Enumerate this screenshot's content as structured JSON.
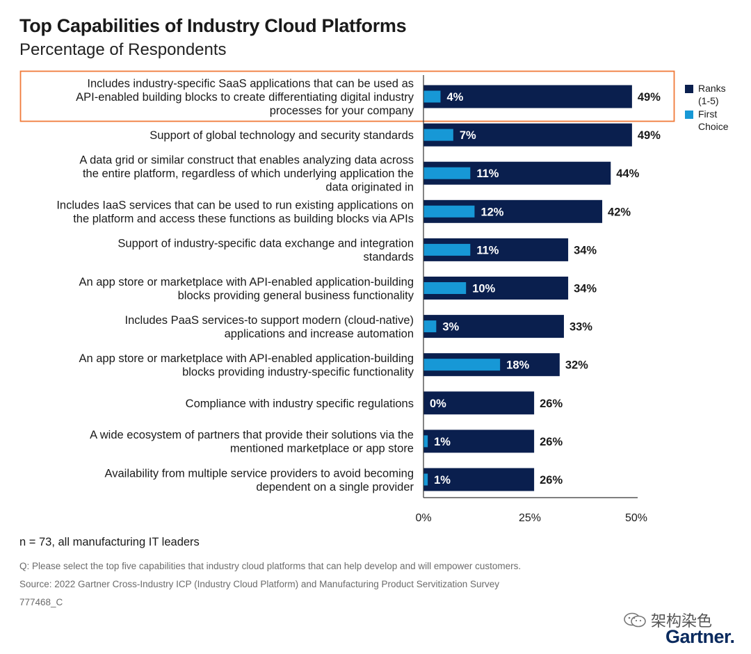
{
  "title": "Top Capabilities of Industry Cloud Platforms",
  "subtitle": "Percentage of Respondents",
  "legend": {
    "ranks_label_line1": "Ranks",
    "ranks_label_line2": "(1-5)",
    "first_label_line1": "First",
    "first_label_line2": "Choice"
  },
  "colors": {
    "ranks": "#0a1f4e",
    "first": "#1798d6",
    "highlight": "#f07a3a",
    "axis": "#333333"
  },
  "chart_data": {
    "type": "bar",
    "orientation": "horizontal",
    "title": "Top Capabilities of Industry Cloud Platforms",
    "subtitle": "Percentage of Respondents",
    "xlim": [
      0,
      50
    ],
    "x_ticks": [
      "0%",
      "25%",
      "50%"
    ],
    "x_tick_values": [
      0,
      25,
      50
    ],
    "series": [
      {
        "name": "Ranks (1-5)",
        "values": [
          49,
          49,
          44,
          42,
          34,
          34,
          33,
          32,
          26,
          26,
          26
        ]
      },
      {
        "name": "First Choice",
        "values": [
          4,
          7,
          11,
          12,
          11,
          10,
          3,
          18,
          0,
          1,
          1
        ]
      }
    ],
    "categories": [
      [
        "Includes industry-specific SaaS applications that can be used as",
        "API-enabled building blocks to create differentiating digital industry",
        "processes for your company"
      ],
      [
        "Support of global technology and security standards"
      ],
      [
        "A data grid or similar construct that enables analyzing data across",
        "the entire platform, regardless of which underlying application the",
        "data originated in"
      ],
      [
        "Includes IaaS services that can be used to run existing applications on",
        "the platform and access these functions as building blocks via APIs"
      ],
      [
        "Support of industry-specific data exchange and integration",
        "standards"
      ],
      [
        "An app store or marketplace with API-enabled application-building",
        "blocks providing general business functionality"
      ],
      [
        "Includes PaaS services-to support modern (cloud-native)",
        "applications and increase automation"
      ],
      [
        "An app store or marketplace with API-enabled application-building",
        "blocks providing industry-specific functionality"
      ],
      [
        "Compliance with industry specific regulations"
      ],
      [
        "A wide ecosystem of partners that provide their solutions via the",
        "mentioned marketplace or app store"
      ],
      [
        "Availability from multiple service providers to avoid becoming",
        "dependent on a single provider"
      ]
    ],
    "ranks_labels": [
      "49%",
      "49%",
      "44%",
      "42%",
      "34%",
      "34%",
      "33%",
      "32%",
      "26%",
      "26%",
      "26%"
    ],
    "first_labels": [
      "4%",
      "7%",
      "11%",
      "12%",
      "11%",
      "10%",
      "3%",
      "18%",
      "0%",
      "1%",
      "1%"
    ],
    "highlighted_index": 0
  },
  "notes": {
    "sample": "n = 73, all manufacturing IT leaders",
    "question": "Q: Please select the top five capabilities that industry cloud platforms that can help develop and will empower customers.",
    "source": "Source: 2022 Gartner Cross-Industry ICP (Industry Cloud Platform) and Manufacturing Product Servitization Survey",
    "id": "777468_C"
  },
  "watermark": "架构染色",
  "brand": "Gartner."
}
